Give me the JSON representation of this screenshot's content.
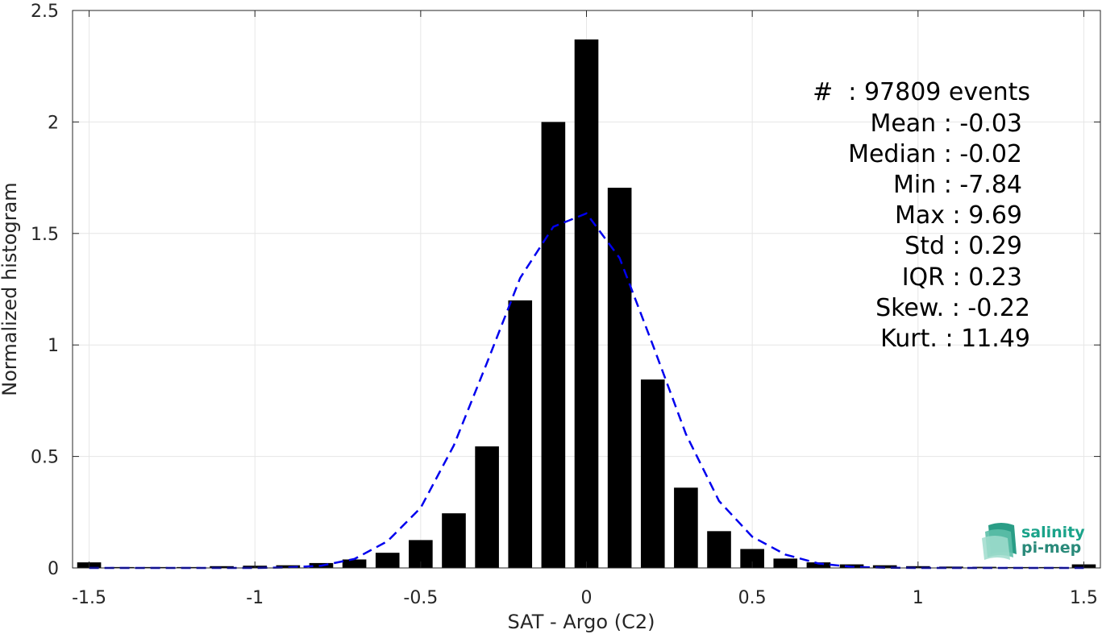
{
  "chart_data": {
    "type": "bar",
    "xlabel": "SAT - Argo (C2)",
    "ylabel": "Normalized histogram",
    "xlim": [
      -1.55,
      1.55
    ],
    "ylim": [
      0,
      2.5
    ],
    "grid": true,
    "x_ticks": [
      -1.5,
      -1,
      -0.5,
      0,
      0.5,
      1,
      1.5
    ],
    "x_tick_labels": [
      "-1.5",
      "-1",
      "-0.5",
      "0",
      "0.5",
      "1",
      "1.5"
    ],
    "y_ticks": [
      0,
      0.5,
      1,
      1.5,
      2,
      2.5
    ],
    "y_tick_labels": [
      "0",
      "0.5",
      "1",
      "1.5",
      "2",
      "2.5"
    ],
    "bar_color": "#000000",
    "bars": {
      "x": [
        -1.5,
        -1.4,
        -1.3,
        -1.2,
        -1.1,
        -1.0,
        -0.9,
        -0.8,
        -0.7,
        -0.6,
        -0.5,
        -0.4,
        -0.3,
        -0.2,
        -0.1,
        0.0,
        0.1,
        0.2,
        0.3,
        0.4,
        0.5,
        0.6,
        0.7,
        0.8,
        0.9,
        1.0,
        1.1,
        1.2,
        1.3,
        1.4,
        1.5
      ],
      "values": [
        0.025,
        0.004,
        0.004,
        0.004,
        0.008,
        0.01,
        0.012,
        0.022,
        0.038,
        0.068,
        0.125,
        0.245,
        0.545,
        1.2,
        2.0,
        2.37,
        1.705,
        0.845,
        0.36,
        0.165,
        0.085,
        0.042,
        0.025,
        0.016,
        0.012,
        0.008,
        0.006,
        0.005,
        0.004,
        0.004,
        0.016
      ]
    },
    "fit_curve": {
      "style": "dashed",
      "color": "#0000ee",
      "x": [
        -1.5,
        -1.4,
        -1.3,
        -1.2,
        -1.1,
        -1.0,
        -0.9,
        -0.8,
        -0.7,
        -0.6,
        -0.5,
        -0.4,
        -0.3,
        -0.2,
        -0.1,
        0.0,
        0.1,
        0.2,
        0.3,
        0.4,
        0.5,
        0.6,
        0.7,
        0.8,
        0.9,
        1.0,
        1.1,
        1.2,
        1.3,
        1.4,
        1.5
      ],
      "values": [
        0.0,
        0.0,
        0.0,
        0.0,
        0.0,
        0.0,
        0.002,
        0.01,
        0.04,
        0.12,
        0.27,
        0.55,
        0.92,
        1.3,
        1.53,
        1.59,
        1.39,
        1.0,
        0.6,
        0.3,
        0.14,
        0.06,
        0.02,
        0.005,
        0.001,
        0.0,
        0.0,
        0.0,
        0.0,
        0.0,
        0.0
      ]
    }
  },
  "stats": [
    "#  : 97809 events",
    "Mean : -0.03",
    "Median : -0.02",
    "Min : -7.84",
    "Max : 9.69",
    "Std : 0.29",
    "IQR : 0.23",
    "Skew. : -0.22",
    "Kurt. : 11.49"
  ],
  "logo": {
    "line1": "salinity",
    "line2": "pi-mep",
    "color1": "#1aa38a",
    "color2": "#2a8a7a"
  }
}
